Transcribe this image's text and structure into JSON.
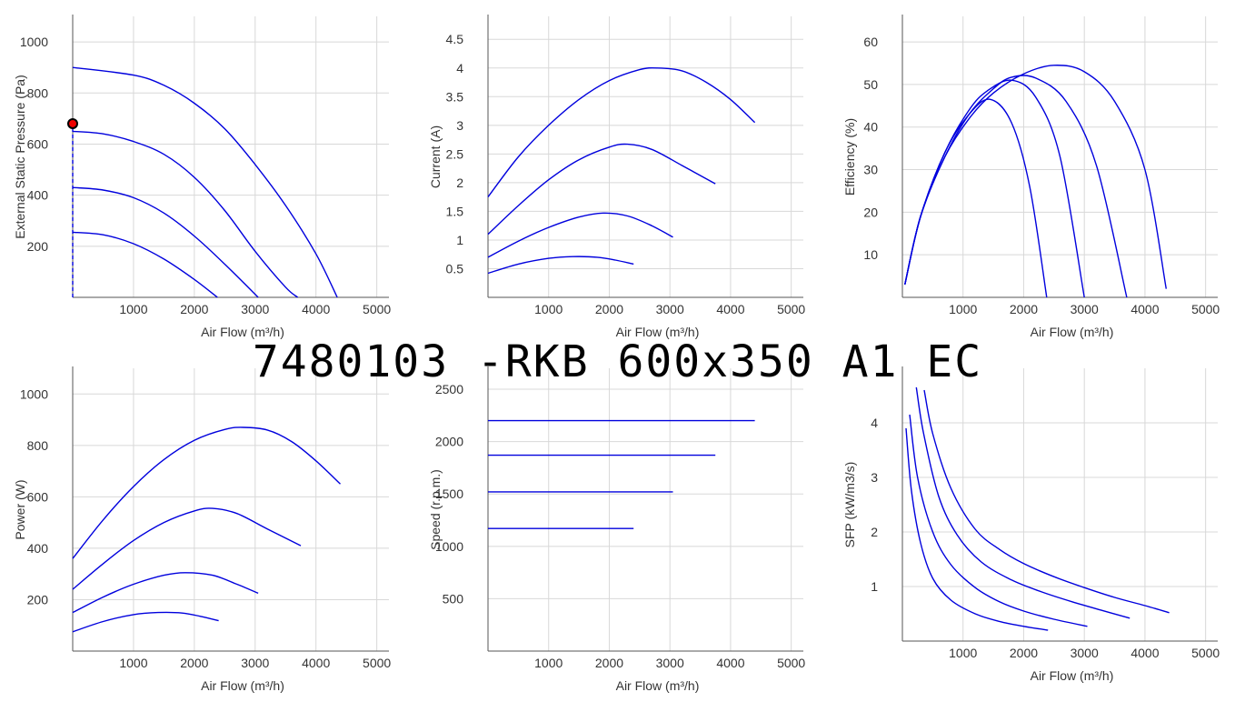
{
  "title": "7480103 -RKB 600x350 A1 EC",
  "series_color": "#0000dd",
  "marker_color": "#ee0000",
  "chart_data": [
    {
      "type": "line",
      "xlabel": "Air Flow (m³/h)",
      "ylabel": "External Static Pressure (Pa)",
      "xlim": [
        0,
        5200
      ],
      "ylim": [
        0,
        1100
      ],
      "xticks": [
        1000,
        2000,
        3000,
        4000,
        5000
      ],
      "yticks": [
        200,
        400,
        600,
        800,
        1000
      ],
      "grid": true,
      "series": [
        {
          "x": [
            0,
            1000,
            1500,
            2000,
            2500,
            3000,
            3500,
            4000,
            4350
          ],
          "y": [
            900,
            870,
            830,
            760,
            660,
            520,
            360,
            170,
            0
          ]
        },
        {
          "x": [
            0,
            500,
            1000,
            1500,
            2000,
            2500,
            3000,
            3500,
            3700
          ],
          "y": [
            650,
            640,
            610,
            560,
            470,
            340,
            180,
            40,
            0
          ]
        },
        {
          "x": [
            0,
            500,
            1000,
            1500,
            2000,
            2500,
            3050
          ],
          "y": [
            430,
            420,
            390,
            330,
            240,
            130,
            0
          ]
        },
        {
          "x": [
            0,
            500,
            1000,
            1500,
            2000,
            2380
          ],
          "y": [
            255,
            245,
            210,
            150,
            70,
            0
          ]
        }
      ],
      "operating_point": {
        "x": 0,
        "y": 680
      },
      "operating_line": {
        "x": [
          0,
          0
        ],
        "y": [
          0,
          680
        ]
      }
    },
    {
      "type": "line",
      "xlabel": "Air Flow (m³/h)",
      "ylabel": "Current (A)",
      "xlim": [
        0,
        5200
      ],
      "ylim": [
        0,
        4.9
      ],
      "xticks": [
        1000,
        2000,
        3000,
        4000,
        5000
      ],
      "yticks": [
        "0.5",
        "1",
        "1.5",
        "2",
        "2.5",
        "3",
        "3.5",
        "4",
        "4.5"
      ],
      "grid": true,
      "series": [
        {
          "x": [
            0,
            500,
            1000,
            1500,
            2000,
            2500,
            2800,
            3200,
            3600,
            4000,
            4400
          ],
          "y": [
            1.75,
            2.45,
            3.0,
            3.45,
            3.78,
            3.97,
            4.0,
            3.95,
            3.75,
            3.45,
            3.05
          ]
        },
        {
          "x": [
            0,
            500,
            1000,
            1500,
            2000,
            2300,
            2700,
            3200,
            3750
          ],
          "y": [
            1.1,
            1.6,
            2.05,
            2.4,
            2.62,
            2.67,
            2.58,
            2.3,
            1.98
          ]
        },
        {
          "x": [
            0,
            500,
            1000,
            1500,
            1900,
            2300,
            2700,
            3050
          ],
          "y": [
            0.7,
            0.98,
            1.22,
            1.4,
            1.47,
            1.42,
            1.25,
            1.05
          ]
        },
        {
          "x": [
            0,
            500,
            1000,
            1400,
            1800,
            2100,
            2400
          ],
          "y": [
            0.42,
            0.58,
            0.68,
            0.71,
            0.7,
            0.65,
            0.58
          ]
        }
      ]
    },
    {
      "type": "line",
      "xlabel": "Air Flow (m³/h)",
      "ylabel": "Efficiency (%)",
      "xlim": [
        0,
        5200
      ],
      "ylim": [
        0,
        66
      ],
      "xticks": [
        1000,
        2000,
        3000,
        4000,
        5000
      ],
      "yticks": [
        10,
        20,
        30,
        40,
        50,
        60
      ],
      "grid": true,
      "series": [
        {
          "x": [
            40,
            300,
            700,
            1100,
            1500,
            2000,
            2500,
            3000,
            3500,
            4000,
            4350
          ],
          "y": [
            3,
            19,
            33,
            42,
            48,
            52.5,
            54.5,
            53,
            46,
            30,
            2
          ]
        },
        {
          "x": [
            40,
            300,
            700,
            1100,
            1500,
            1800,
            2200,
            2700,
            3200,
            3700
          ],
          "y": [
            3,
            19,
            33,
            43,
            49,
            51.7,
            51.5,
            46,
            31,
            0
          ]
        },
        {
          "x": [
            40,
            300,
            700,
            1100,
            1400,
            1800,
            2200,
            2600,
            3000
          ],
          "y": [
            3,
            19,
            34,
            44,
            48.5,
            51,
            47,
            33,
            0
          ]
        },
        {
          "x": [
            40,
            300,
            700,
            1100,
            1450,
            1800,
            2100,
            2380
          ],
          "y": [
            3,
            19,
            34,
            43,
            46.5,
            41,
            26,
            0
          ]
        }
      ]
    },
    {
      "type": "line",
      "xlabel": "Air Flow (m³/h)",
      "ylabel": "Power (W)",
      "xlim": [
        0,
        5200
      ],
      "ylim": [
        0,
        1100
      ],
      "xticks": [
        1000,
        2000,
        3000,
        4000,
        5000
      ],
      "yticks": [
        200,
        400,
        600,
        800,
        1000
      ],
      "grid": true,
      "series": [
        {
          "x": [
            0,
            500,
            1000,
            1500,
            2000,
            2500,
            2800,
            3200,
            3600,
            4000,
            4400
          ],
          "y": [
            360,
            510,
            640,
            745,
            820,
            862,
            870,
            860,
            815,
            740,
            650
          ]
        },
        {
          "x": [
            0,
            500,
            1000,
            1500,
            2000,
            2300,
            2700,
            3200,
            3750
          ],
          "y": [
            240,
            340,
            430,
            500,
            545,
            555,
            535,
            475,
            410
          ]
        },
        {
          "x": [
            0,
            500,
            1000,
            1500,
            1850,
            2300,
            2700,
            3050
          ],
          "y": [
            150,
            210,
            260,
            295,
            305,
            295,
            260,
            225
          ]
        },
        {
          "x": [
            0,
            500,
            1000,
            1400,
            1800,
            2100,
            2400
          ],
          "y": [
            75,
            115,
            142,
            150,
            148,
            135,
            118
          ]
        }
      ]
    },
    {
      "type": "line",
      "xlabel": "Air Flow (m³/h)",
      "ylabel": "Speed (r.p.m.)",
      "xlim": [
        0,
        5200
      ],
      "ylim": [
        0,
        2700
      ],
      "xticks": [
        1000,
        2000,
        3000,
        4000,
        5000
      ],
      "yticks": [
        500,
        1000,
        1500,
        2000,
        2500
      ],
      "grid": true,
      "series": [
        {
          "x": [
            0,
            4400
          ],
          "y": [
            2200,
            2200
          ]
        },
        {
          "x": [
            0,
            3750
          ],
          "y": [
            1870,
            1870
          ]
        },
        {
          "x": [
            0,
            3050
          ],
          "y": [
            1520,
            1520
          ]
        },
        {
          "x": [
            0,
            2400
          ],
          "y": [
            1170,
            1170
          ]
        }
      ]
    },
    {
      "type": "line",
      "xlabel": "Air Flow (m³/h)",
      "ylabel": "SFP (kW/m3/s)",
      "xlim": [
        0,
        5200
      ],
      "ylim": [
        0,
        5
      ],
      "xticks": [
        1000,
        2000,
        3000,
        4000,
        5000
      ],
      "yticks": [
        1,
        2,
        3,
        4
      ],
      "grid": true,
      "series": [
        {
          "x": [
            360,
            500,
            800,
            1200,
            1600,
            2000,
            2500,
            3000,
            3500,
            4000,
            4400
          ],
          "y": [
            4.6,
            3.8,
            2.8,
            2.05,
            1.68,
            1.42,
            1.18,
            0.98,
            0.8,
            0.65,
            0.52
          ]
        },
        {
          "x": [
            230,
            350,
            600,
            900,
            1300,
            1800,
            2300,
            2800,
            3300,
            3750
          ],
          "y": [
            4.65,
            3.8,
            2.65,
            1.95,
            1.45,
            1.12,
            0.9,
            0.72,
            0.56,
            0.42
          ]
        },
        {
          "x": [
            120,
            250,
            500,
            800,
            1200,
            1600,
            2000,
            2500,
            3050
          ],
          "y": [
            4.15,
            3.0,
            2.0,
            1.4,
            0.98,
            0.72,
            0.55,
            0.4,
            0.27
          ]
        },
        {
          "x": [
            60,
            150,
            300,
            500,
            800,
            1200,
            1600,
            2000,
            2400
          ],
          "y": [
            3.9,
            2.75,
            1.8,
            1.15,
            0.75,
            0.5,
            0.36,
            0.27,
            0.2
          ]
        }
      ]
    }
  ]
}
